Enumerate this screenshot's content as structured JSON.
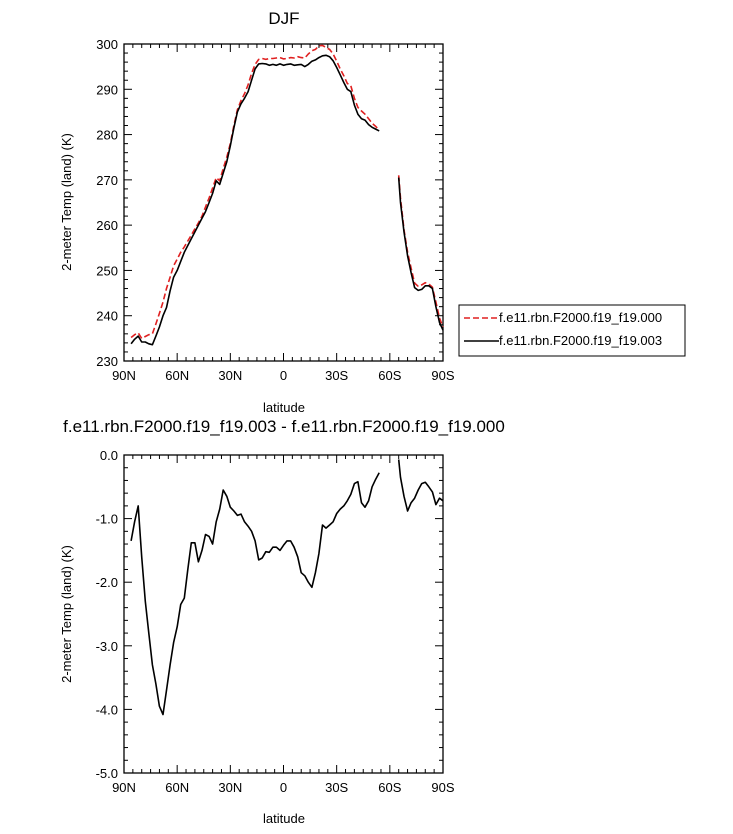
{
  "chart_data": [
    {
      "type": "line",
      "title": "DJF",
      "xlabel": "latitude",
      "ylabel": "2-meter Temp (land) (K)",
      "xlim": [
        90,
        -90
      ],
      "ylim": [
        230,
        300
      ],
      "x_ticks": [
        90,
        60,
        30,
        0,
        -30,
        -60,
        -90
      ],
      "x_tick_labels": [
        "90N",
        "60N",
        "30N",
        "0",
        "30S",
        "60S",
        "90S"
      ],
      "y_ticks": [
        230,
        240,
        250,
        260,
        270,
        280,
        290,
        300
      ],
      "y_tick_labels": [
        "230",
        "240",
        "250",
        "260",
        "270",
        "280",
        "290",
        "300"
      ],
      "legend": {
        "placement": "right",
        "entries": [
          {
            "label": "f.e11.rbn.F2000.f19_f19.000",
            "color": "#e02020",
            "dash": "dashed"
          },
          {
            "label": "f.e11.rbn.F2000.f19_f19.003",
            "color": "#000000",
            "dash": "solid"
          }
        ]
      },
      "series": [
        {
          "name": "f.e11.rbn.F2000.f19_f19.000",
          "color": "#e02020",
          "dash": "dashed",
          "segments": [
            {
              "x": [
                86,
                84,
                82,
                80,
                78,
                76,
                74,
                72,
                70,
                68,
                66,
                64,
                62,
                60,
                58,
                56,
                54,
                52,
                50,
                48,
                46,
                44,
                42,
                40,
                38,
                36,
                34,
                32,
                30,
                28,
                26,
                24,
                22,
                20,
                18,
                16,
                14,
                12,
                10,
                8,
                6,
                4,
                2,
                0,
                -2,
                -4,
                -6,
                -8,
                -10,
                -12,
                -14,
                -16,
                -18,
                -20,
                -22,
                -24,
                -26,
                -28,
                -30,
                -32,
                -34,
                -36,
                -38,
                -40,
                -42,
                -44,
                -46,
                -48,
                -50,
                -52,
                -54
              ],
              "y": [
                235.2,
                235.8,
                236.2,
                235.0,
                235.4,
                235.8,
                236.0,
                238.2,
                240.5,
                243.0,
                246.0,
                248.5,
                251.0,
                252.5,
                254.0,
                255.2,
                256.5,
                257.8,
                259.2,
                260.5,
                262.0,
                264.0,
                266.0,
                268.2,
                270.5,
                269.8,
                272.5,
                275.0,
                278.0,
                282.0,
                285.5,
                287.5,
                289.0,
                291.0,
                293.5,
                295.5,
                296.6,
                296.8,
                296.6,
                296.8,
                296.8,
                296.9,
                297.0,
                296.7,
                296.8,
                297.0,
                296.9,
                297.2,
                297.0,
                296.9,
                297.8,
                298.5,
                298.8,
                299.6,
                299.7,
                299.2,
                298.8,
                297.8,
                296.2,
                294.5,
                293.0,
                291.3,
                290.8,
                288.0,
                286.0,
                285.2,
                284.5,
                283.5,
                282.5,
                281.8,
                281.0
              ]
            },
            {
              "x": [
                -65,
                -66,
                -68,
                -70,
                -72,
                -74,
                -76,
                -78,
                -80,
                -82,
                -84,
                -86,
                -88,
                -90
              ],
              "y": [
                271.0,
                266.0,
                259.0,
                254.0,
                250.5,
                247.2,
                246.5,
                246.8,
                247.3,
                247.0,
                246.3,
                243.0,
                239.5,
                237.5
              ]
            }
          ]
        },
        {
          "name": "f.e11.rbn.F2000.f19_f19.003",
          "color": "#000000",
          "dash": "solid",
          "segments": [
            {
              "x": [
                86,
                84,
                82,
                80,
                78,
                76,
                74,
                72,
                70,
                68,
                66,
                64,
                62,
                60,
                58,
                56,
                54,
                52,
                50,
                48,
                46,
                44,
                42,
                40,
                38,
                36,
                34,
                32,
                30,
                28,
                26,
                24,
                22,
                20,
                18,
                16,
                14,
                12,
                10,
                8,
                6,
                4,
                2,
                0,
                -2,
                -4,
                -6,
                -8,
                -10,
                -12,
                -14,
                -16,
                -18,
                -20,
                -22,
                -24,
                -26,
                -28,
                -30,
                -32,
                -34,
                -36,
                -38,
                -40,
                -42,
                -44,
                -46,
                -48,
                -50,
                -52,
                -54
              ],
              "y": [
                233.8,
                234.8,
                235.5,
                234.2,
                234.2,
                233.8,
                233.6,
                235.5,
                237.5,
                240.0,
                241.8,
                245.5,
                248.5,
                250.0,
                252.0,
                254.0,
                255.5,
                257.0,
                258.5,
                260.0,
                261.5,
                263.0,
                265.0,
                267.0,
                269.8,
                269.0,
                271.5,
                274.0,
                277.5,
                281.5,
                285.0,
                286.8,
                288.0,
                289.5,
                292.0,
                294.5,
                295.6,
                295.7,
                295.6,
                295.3,
                295.5,
                295.3,
                295.6,
                295.3,
                295.5,
                295.6,
                295.3,
                295.4,
                295.5,
                295.0,
                295.5,
                296.2,
                296.5,
                297.0,
                297.4,
                297.5,
                297.2,
                296.3,
                294.8,
                293.2,
                291.5,
                290.0,
                289.5,
                286.5,
                284.5,
                283.5,
                283.2,
                282.2,
                281.6,
                281.2,
                280.8
              ]
            },
            {
              "x": [
                -65,
                -66,
                -68,
                -70,
                -72,
                -74,
                -76,
                -78,
                -80,
                -82,
                -84,
                -86,
                -88,
                -90
              ],
              "y": [
                270.5,
                265.0,
                258.5,
                253.2,
                249.5,
                246.2,
                245.6,
                245.8,
                246.6,
                246.6,
                246.0,
                242.0,
                238.5,
                236.8
              ]
            }
          ]
        }
      ]
    },
    {
      "type": "line",
      "title": "f.e11.rbn.F2000.f19_f19.003 - f.e11.rbn.F2000.f19_f19.000",
      "xlabel": "latitude",
      "ylabel": "2-meter Temp (land) (K)",
      "xlim": [
        90,
        -90
      ],
      "ylim": [
        -5.0,
        0.0
      ],
      "x_ticks": [
        90,
        60,
        30,
        0,
        -30,
        -60,
        -90
      ],
      "x_tick_labels": [
        "90N",
        "60N",
        "30N",
        "0",
        "30S",
        "60S",
        "90S"
      ],
      "y_ticks": [
        0.0,
        -1.0,
        -2.0,
        -3.0,
        -4.0,
        -5.0
      ],
      "y_tick_labels": [
        "0.0",
        "-1.0",
        "-2.0",
        "-3.0",
        "-4.0",
        "-5.0"
      ],
      "series": [
        {
          "color": "#000000",
          "dash": "solid",
          "segments": [
            {
              "x": [
                86,
                84,
                82,
                80,
                78,
                76,
                74,
                72,
                70,
                68,
                66,
                64,
                62,
                60,
                58,
                56,
                54,
                52,
                50,
                48,
                46,
                44,
                42,
                40,
                38,
                36,
                34,
                32,
                30,
                28,
                26,
                24,
                22,
                20,
                18,
                16,
                14,
                12,
                10,
                8,
                6,
                4,
                2,
                0,
                -2,
                -4,
                -6,
                -8,
                -10,
                -12,
                -14,
                -16,
                -18,
                -20,
                -22,
                -24,
                -26,
                -28,
                -30,
                -32,
                -34,
                -36,
                -38,
                -40,
                -42,
                -44,
                -46,
                -48,
                -50,
                -52,
                -54
              ],
              "y": [
                -1.35,
                -1.05,
                -0.8,
                -1.6,
                -2.3,
                -2.8,
                -3.3,
                -3.6,
                -3.95,
                -4.08,
                -3.7,
                -3.3,
                -2.95,
                -2.7,
                -2.35,
                -2.25,
                -1.8,
                -1.38,
                -1.38,
                -1.68,
                -1.5,
                -1.25,
                -1.28,
                -1.4,
                -1.05,
                -0.85,
                -0.55,
                -0.65,
                -0.82,
                -0.88,
                -0.95,
                -0.93,
                -1.05,
                -1.12,
                -1.2,
                -1.35,
                -1.65,
                -1.62,
                -1.52,
                -1.53,
                -1.45,
                -1.45,
                -1.5,
                -1.42,
                -1.35,
                -1.35,
                -1.45,
                -1.6,
                -1.85,
                -1.9,
                -2.0,
                -2.08,
                -1.85,
                -1.55,
                -1.1,
                -1.15,
                -1.1,
                -1.05,
                -0.92,
                -0.85,
                -0.8,
                -0.72,
                -0.62,
                -0.45,
                -0.42,
                -0.75,
                -0.82,
                -0.72,
                -0.5,
                -0.38,
                -0.28
              ]
            },
            {
              "x": [
                -65,
                -66,
                -68,
                -70,
                -72,
                -74,
                -76,
                -78,
                -80,
                -82,
                -84,
                -86,
                -88,
                -90
              ],
              "y": [
                -0.07,
                -0.35,
                -0.65,
                -0.88,
                -0.75,
                -0.68,
                -0.55,
                -0.45,
                -0.43,
                -0.5,
                -0.58,
                -0.78,
                -0.68,
                -0.72
              ]
            }
          ]
        }
      ]
    }
  ]
}
